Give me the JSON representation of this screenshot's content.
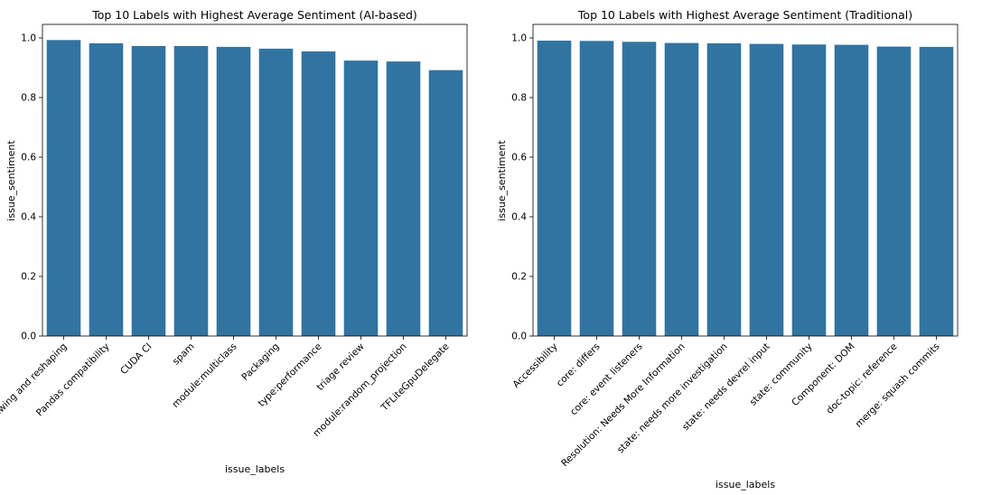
{
  "chart_data": [
    {
      "type": "bar",
      "title": "Top 10 Labels with Highest Average Sentiment (AI-based)",
      "xlabel": "issue_labels",
      "ylabel": "issue_sentiment",
      "ylim": [
        0,
        1.0
      ],
      "yticks": [
        "0.0",
        "0.2",
        "0.4",
        "0.6",
        "0.8",
        "1.0"
      ],
      "categories": [
        "module: viewing and reshaping",
        "Pandas compatibility",
        "CUDA CI",
        "spam",
        "module:multiclass",
        "Packaging",
        "type:performance",
        "triage review",
        "module:random_projection",
        "TFLiteGpuDelegate"
      ],
      "values": [
        0.993,
        0.982,
        0.973,
        0.973,
        0.97,
        0.964,
        0.955,
        0.924,
        0.921,
        0.892
      ],
      "bar_color": "#3274a1",
      "grid": false
    },
    {
      "type": "bar",
      "title": "Top 10 Labels with Highest Average Sentiment (Traditional)",
      "xlabel": "issue_labels",
      "ylabel": "issue_sentiment",
      "ylim": [
        0,
        1.0
      ],
      "yticks": [
        "0.0",
        "0.2",
        "0.4",
        "0.6",
        "0.8",
        "1.0"
      ],
      "categories": [
        "Accessibility",
        "core: differs",
        "core: event listeners",
        "Resolution: Needs More Information",
        "state: needs more investigation",
        "state: needs devrel input",
        "state: community",
        "Component: DOM",
        "doc-topic: reference",
        "merge: squash commits"
      ],
      "values": [
        0.991,
        0.99,
        0.987,
        0.983,
        0.982,
        0.98,
        0.978,
        0.977,
        0.971,
        0.97
      ],
      "bar_color": "#3274a1",
      "grid": false
    }
  ]
}
